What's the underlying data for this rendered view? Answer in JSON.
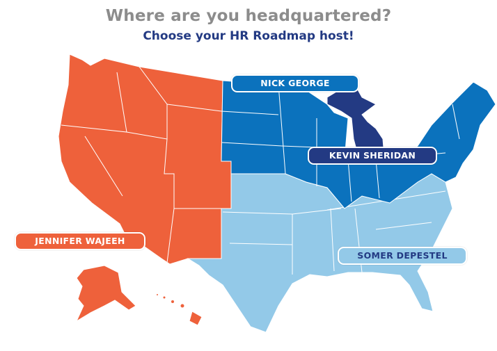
{
  "header": {
    "title": "Where are you headquartered?",
    "subtitle": "Choose your HR Roadmap host!"
  },
  "regions": [
    {
      "id": "west",
      "host": "JENNIFER WAJEEH",
      "color": "#ee613b",
      "text_color": "#ffffff"
    },
    {
      "id": "north-central-northeast",
      "host": "NICK GEORGE",
      "color": "#0b72bd",
      "text_color": "#ffffff"
    },
    {
      "id": "michigan",
      "host": "KEVIN SHERIDAN",
      "color": "#233a83",
      "text_color": "#ffffff"
    },
    {
      "id": "south",
      "host": "SOMER DEPESTEL",
      "color": "#93c9e8",
      "text_color": "#233a83"
    }
  ]
}
